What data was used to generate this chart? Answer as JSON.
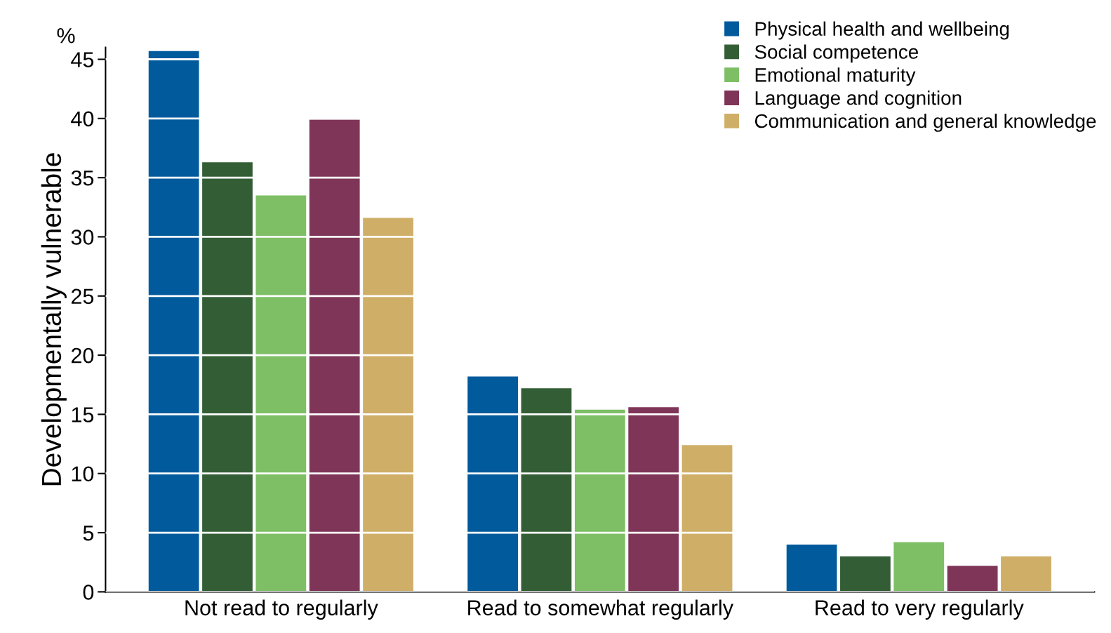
{
  "chart_data": {
    "type": "bar",
    "ylabel": "Developmentally vulnerable",
    "annotations": [
      "%"
    ],
    "categories": [
      "Not read to regularly",
      "Read to somewhat regularly",
      "Read to very regularly"
    ],
    "series": [
      {
        "name": "Physical health and wellbeing",
        "color": "#005a9c",
        "values": [
          45.7,
          18.2,
          4.0
        ]
      },
      {
        "name": "Social competence",
        "color": "#335e35",
        "values": [
          36.3,
          17.2,
          3.0
        ]
      },
      {
        "name": "Emotional maturity",
        "color": "#7ebf66",
        "values": [
          33.5,
          15.4,
          4.2
        ]
      },
      {
        "name": "Language and cognition",
        "color": "#7f3558",
        "values": [
          39.9,
          15.6,
          2.2
        ]
      },
      {
        "name": "Communication and general knowledge",
        "color": "#cfae68",
        "values": [
          31.6,
          12.4,
          3.0
        ]
      }
    ],
    "ylim": [
      0,
      46
    ],
    "yticks": [
      0,
      5,
      10,
      15,
      20,
      25,
      30,
      35,
      40,
      45
    ],
    "grid": "y",
    "legend": "top right"
  }
}
